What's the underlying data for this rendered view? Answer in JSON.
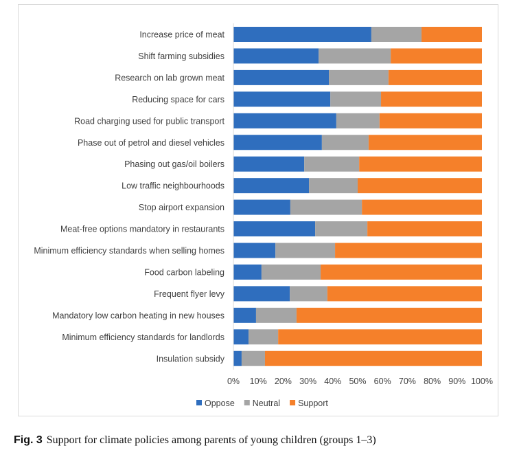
{
  "chart_data": {
    "type": "bar",
    "orientation": "horizontal",
    "stacked": true,
    "categories": [
      "Increase price of meat",
      "Shift farming subsidies",
      "Research on lab grown meat",
      "Reducing space for cars",
      "Road charging used for public transport",
      "Phase out of petrol and diesel vehicles",
      "Phasing out gas/oil boilers",
      "Low traffic neighbourhoods",
      "Stop airport expansion",
      "Meat-free options mandatory in restaurants",
      "Minimum efficiency standards when selling homes",
      "Food carbon labeling",
      "Frequent flyer levy",
      "Mandatory low carbon heating in new houses",
      "Minimum efficiency standards for landlords",
      "Insulation subsidy"
    ],
    "series": [
      {
        "name": "Oppose",
        "color": "#2f6ebe",
        "values": [
          55.5,
          34.3,
          38.4,
          39.0,
          41.4,
          35.6,
          28.5,
          30.4,
          22.9,
          32.9,
          16.9,
          11.3,
          22.7,
          9.1,
          6.1,
          3.3
        ]
      },
      {
        "name": "Neutral",
        "color": "#a5a5a5",
        "values": [
          20.2,
          29.0,
          24.0,
          20.4,
          17.4,
          18.8,
          22.1,
          19.6,
          28.8,
          21.0,
          24.0,
          23.8,
          15.1,
          16.3,
          11.9,
          9.4
        ]
      },
      {
        "name": "Support",
        "color": "#f5802a",
        "values": [
          24.3,
          36.7,
          37.6,
          40.6,
          41.2,
          45.6,
          49.4,
          50.0,
          48.3,
          46.1,
          59.1,
          64.9,
          62.2,
          74.6,
          82.0,
          87.3
        ]
      }
    ],
    "xticks": [
      "0%",
      "10%",
      "20%",
      "30%",
      "40%",
      "50%",
      "60%",
      "70%",
      "80%",
      "90%",
      "100%"
    ],
    "xlim": [
      0,
      100
    ],
    "title": "",
    "xlabel": "",
    "ylabel": "",
    "legend": "bottom",
    "grid": false
  },
  "caption": {
    "label": "Fig. 3",
    "text": "Support for climate policies among parents of young children (groups 1–3)"
  }
}
